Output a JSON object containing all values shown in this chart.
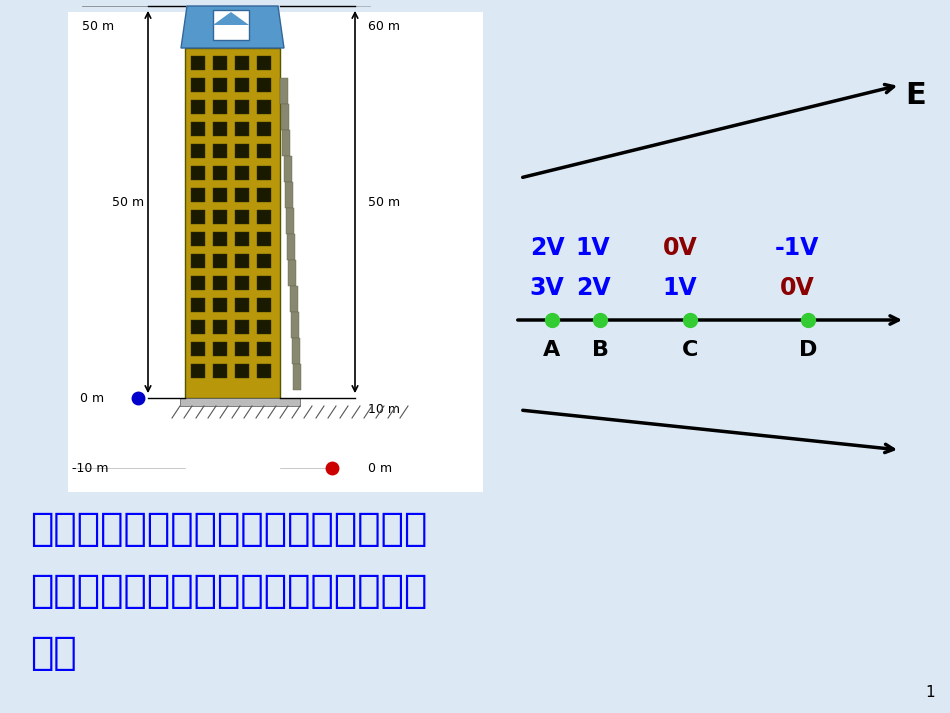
{
  "bg_color": "#dce9f5",
  "left_panel_bg": "#ffffff",
  "text_color_blue": "#0000ff",
  "text_color_dark_red": "#8b0000",
  "green_dot_color": "#33cc33",
  "blue_dot_color": "#0000cc",
  "red_dot_color": "#cc0000",
  "row1_labels": [
    "2V",
    "1V",
    "0V",
    "-1V"
  ],
  "row1_colors": [
    "#0000ff",
    "#0000ff",
    "#8b0000",
    "#0000ff"
  ],
  "row2_labels": [
    "3V",
    "2V",
    "1V",
    "0V"
  ],
  "row2_colors": [
    "#0000ff",
    "#0000ff",
    "#0000ff",
    "#8b0000"
  ],
  "point_labels": [
    "A",
    "B",
    "C",
    "D"
  ],
  "E_label": "E",
  "bottom_text_line1": "电势和高度都具有相对性，与参考点的",
  "bottom_text_line2": "选择有关，而高度差与参考点的选择无",
  "bottom_text_line3": "关。",
  "page_number": "1",
  "top_left_label": "50 m",
  "top_right_label": "60 m",
  "mid_left_label": "50 m",
  "mid_right_label": "50 m",
  "bot_left_label": "0 m",
  "bot_right_label": "10 m",
  "neg_left_label": "-10 m",
  "neg_right_label": "0 m"
}
